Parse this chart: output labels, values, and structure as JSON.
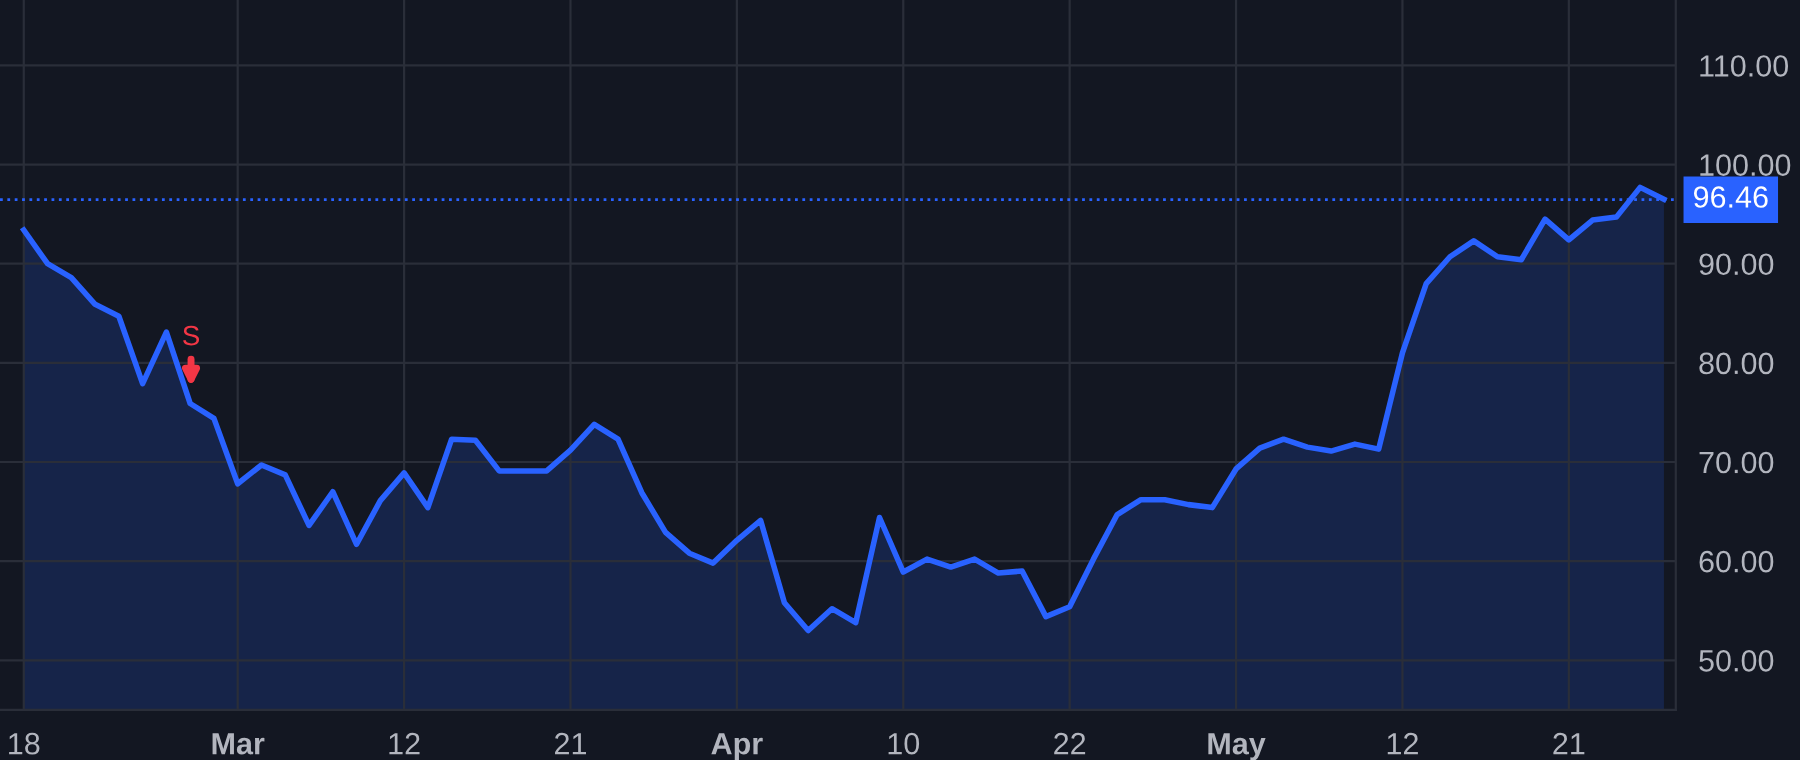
{
  "chart_data": {
    "type": "area",
    "categories": [
      "18",
      null,
      null,
      null,
      null,
      null,
      null,
      null,
      null,
      "Mar",
      null,
      null,
      null,
      null,
      null,
      null,
      "12",
      null,
      null,
      null,
      null,
      null,
      null,
      "21",
      null,
      null,
      null,
      null,
      null,
      null,
      "Apr",
      null,
      null,
      null,
      null,
      null,
      null,
      "10",
      null,
      null,
      null,
      null,
      null,
      null,
      "22",
      null,
      null,
      null,
      null,
      null,
      null,
      "May",
      null,
      null,
      null,
      null,
      null,
      null,
      "12",
      null,
      null,
      null,
      null,
      null,
      null,
      "21",
      null,
      null,
      null,
      null
    ],
    "series": [
      {
        "color": "#2962ff",
        "values": [
          93.4,
          90.0,
          88.6,
          85.9,
          84.7,
          77.9,
          83.1,
          75.9,
          74.4,
          67.8,
          69.7,
          68.7,
          63.6,
          67.0,
          61.7,
          66.1,
          68.9,
          65.4,
          72.3,
          72.2,
          69.1,
          69.1,
          69.1,
          71.2,
          73.8,
          72.3,
          66.9,
          62.9,
          60.8,
          59.8,
          62.1,
          64.1,
          55.8,
          53.0,
          55.2,
          53.8,
          64.4,
          58.9,
          60.2,
          59.4,
          60.2,
          58.8,
          59.0,
          54.4,
          55.4,
          60.2,
          64.7,
          66.2,
          66.2,
          65.7,
          65.4,
          69.3,
          71.4,
          72.3,
          71.5,
          71.1,
          71.8,
          71.3,
          81.0,
          88.0,
          90.7,
          92.3,
          90.7,
          90.4,
          94.5,
          92.4,
          94.4,
          94.7,
          97.7,
          96.5
        ]
      }
    ],
    "ylim": [
      45,
      116.6
    ],
    "yticks": [
      {
        "value": 50,
        "label": "50.00"
      },
      {
        "value": 60,
        "label": "60.00"
      },
      {
        "value": 70,
        "label": "70.00"
      },
      {
        "value": 80,
        "label": "80.00"
      },
      {
        "value": 90,
        "label": "90.00"
      },
      {
        "value": 100,
        "label": "100.00"
      },
      {
        "value": 110,
        "label": "110.00"
      }
    ],
    "ref_lines": [
      {
        "axis": "y",
        "value": 96.46,
        "label": "96.46",
        "color": "#2962ff",
        "line_style": "dotted"
      }
    ],
    "annotations": [
      {
        "text": "S",
        "y": 77
      }
    ],
    "grid": true,
    "legend": false,
    "marker": "none",
    "line_style": "solid"
  }
}
